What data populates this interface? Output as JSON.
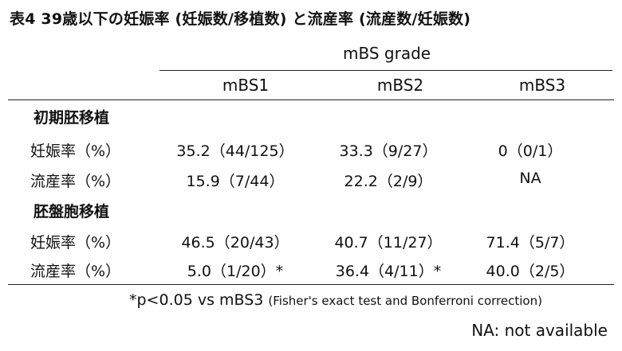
{
  "title": "表4  39歳以下の妊娠率 (妊娠数/移植数) と流産率 (流産数/妊娠数)",
  "header": {
    "group_label": "mBS grade",
    "columns": [
      "mBS1",
      "mBS2",
      "mBS3"
    ]
  },
  "sections": [
    {
      "label": "初期胚移植",
      "rows": [
        {
          "label": "妊娠率（%）",
          "values": [
            "35.2（44/125）",
            "33.3（9/27）",
            "0（0/1）"
          ]
        },
        {
          "label": "流産率（%）",
          "values": [
            "15.9（7/44）",
            "22.2（2/9）",
            "NA"
          ]
        }
      ]
    },
    {
      "label": "胚盤胞移植",
      "rows": [
        {
          "label": "妊娠率（%）",
          "values": [
            "46.5（20/43）",
            "40.7（11/27）",
            "71.4（5/7）"
          ]
        },
        {
          "label": "流産率（%）",
          "values": [
            "5.0（1/20）*",
            "36.4（4/11）*",
            "40.0（2/5）"
          ]
        }
      ]
    }
  ],
  "footnote": {
    "main": "*p<0.05 vs mBS3 ",
    "detail": "(Fisher's exact test and Bonferroni correction)"
  },
  "na_note": "NA: not available"
}
